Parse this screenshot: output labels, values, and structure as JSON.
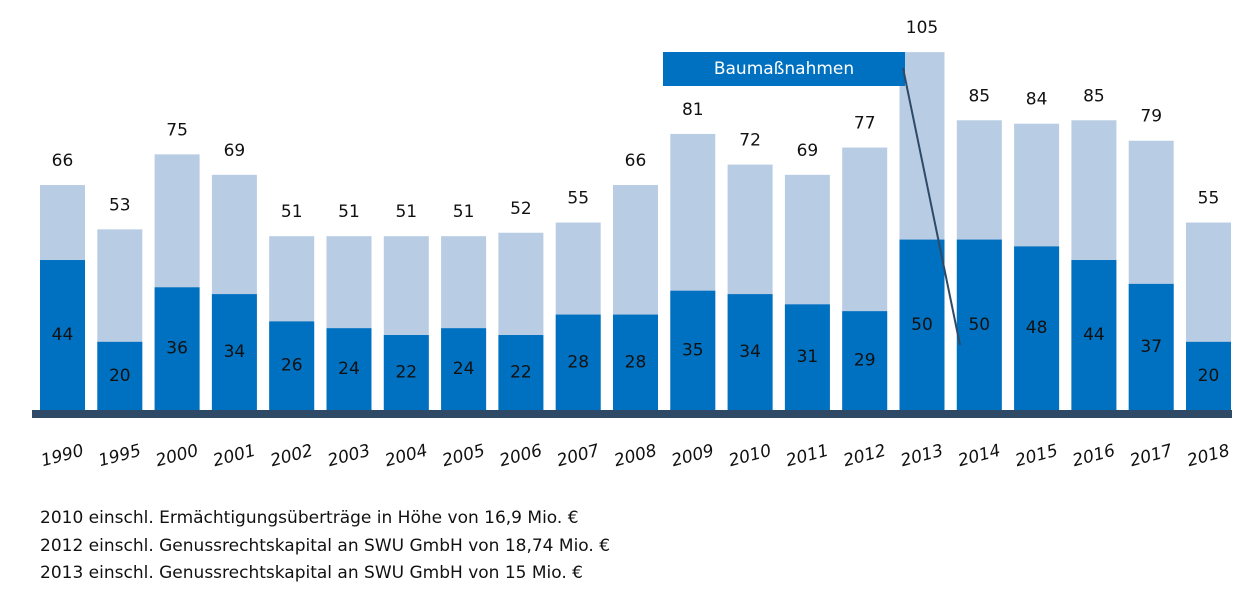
{
  "chart_data": {
    "type": "bar",
    "categories": [
      "1990",
      "1995",
      "2000",
      "2001",
      "2002",
      "2003",
      "2004",
      "2005",
      "2006",
      "2007",
      "2008",
      "2009",
      "2010",
      "2011",
      "2012",
      "2013",
      "2014",
      "2015",
      "2016",
      "2017",
      "2018"
    ],
    "totals": [
      66,
      53,
      75,
      69,
      51,
      51,
      51,
      51,
      52,
      55,
      66,
      81,
      72,
      69,
      77,
      105,
      85,
      84,
      85,
      79,
      55
    ],
    "totals_color": "#b8cce4",
    "series": [
      {
        "name": "Baumaßnahmen",
        "color": "#0070c0",
        "values": [
          44,
          20,
          36,
          34,
          26,
          24,
          22,
          24,
          22,
          28,
          28,
          35,
          34,
          31,
          29,
          50,
          50,
          48,
          44,
          37,
          20
        ]
      }
    ],
    "ylim": [
      0,
      120
    ],
    "notes": [
      "2010 einschl. Ermächtigungsüberträge in Höhe von 16,9 Mio. €",
      "2012 einschl. Genussrechtskapital an SWU GmbH von 18,74 Mio. €",
      "2013 einschl. Genussrechtskapital an SWU GmbH von 15 Mio. €"
    ]
  }
}
